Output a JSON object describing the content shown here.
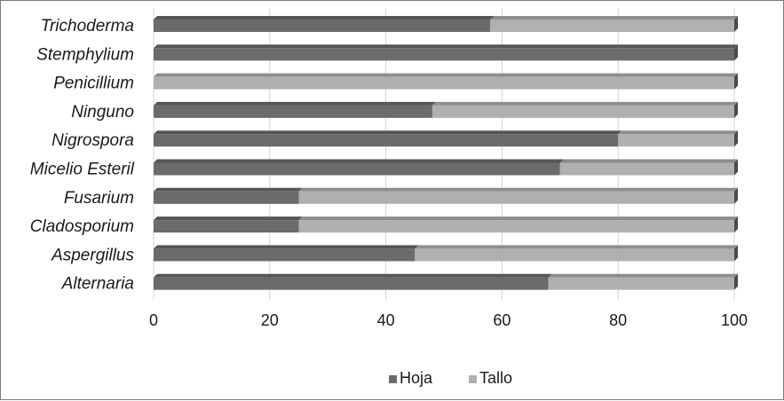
{
  "chart_data": {
    "type": "bar",
    "orientation": "horizontal",
    "stacked": true,
    "percent_stacked": true,
    "categories": [
      "Trichoderma",
      "Stemphylium",
      "Penicillium",
      "Ninguno",
      "Nigrospora",
      "Micelio Esteril",
      "Fusarium",
      "Cladosporium",
      "Aspergillus",
      "Alternaria"
    ],
    "series": [
      {
        "name": "Hoja",
        "values": [
          58,
          100,
          0,
          48,
          80,
          70,
          25,
          25,
          45,
          68
        ],
        "color": "#6b6b6b"
      },
      {
        "name": "Tallo",
        "values": [
          42,
          0,
          100,
          52,
          20,
          30,
          75,
          75,
          55,
          32
        ],
        "color": "#b0b0b0"
      }
    ],
    "xlim": [
      0,
      100
    ],
    "xticks": [
      "0",
      "20",
      "40",
      "60",
      "80",
      "100"
    ],
    "grid": true,
    "legend_position": "bottom",
    "title": "",
    "xlabel": "",
    "ylabel": ""
  }
}
